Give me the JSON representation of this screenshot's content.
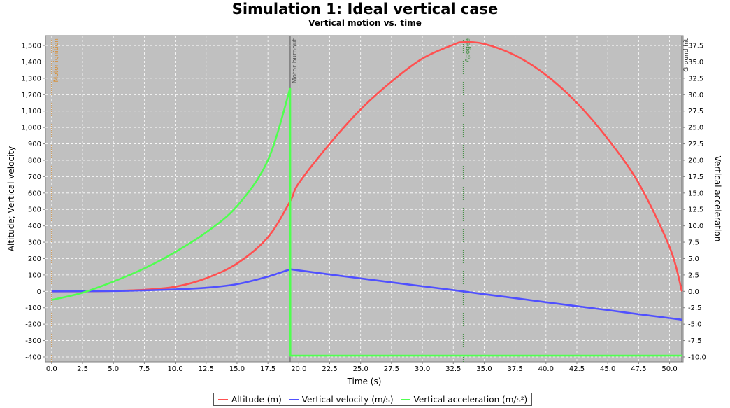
{
  "chart_data": {
    "type": "line",
    "title": "Simulation 1: Ideal vertical case",
    "subtitle": "Vertical motion vs. time",
    "xlabel": "Time (s)",
    "ylabel_left": "Altitude; Vertical velocity",
    "ylabel_right": "Vertical acceleration",
    "xlim": [
      -0.5,
      51.1
    ],
    "ylim_left": [
      -430,
      1560
    ],
    "ylim_right": [
      -10.75,
      39.0
    ],
    "x_ticks": [
      "0.0",
      "2.5",
      "5.0",
      "7.5",
      "10.0",
      "12.5",
      "15.0",
      "17.5",
      "20.0",
      "22.5",
      "25.0",
      "27.5",
      "30.0",
      "32.5",
      "35.0",
      "37.5",
      "40.0",
      "42.5",
      "45.0",
      "47.5",
      "50.0"
    ],
    "y_left_ticks": [
      "-400",
      "-300",
      "-200",
      "-100",
      "0",
      "100",
      "200",
      "300",
      "400",
      "500",
      "600",
      "700",
      "800",
      "900",
      "1,000",
      "1,100",
      "1,200",
      "1,300",
      "1,400",
      "1,500"
    ],
    "y_right_ticks": [
      "-10.0",
      "-7.5",
      "-5.0",
      "-2.5",
      "0.0",
      "2.5",
      "5.0",
      "7.5",
      "10.0",
      "12.5",
      "15.0",
      "17.5",
      "20.0",
      "22.5",
      "25.0",
      "27.5",
      "30.0",
      "32.5",
      "35.0",
      "37.5"
    ],
    "grid": true,
    "legend_position": "bottom",
    "series": [
      {
        "name": "Altitude (m)",
        "axis": "left",
        "color": "#ff5050",
        "points": [
          [
            0,
            0
          ],
          [
            2.5,
            0
          ],
          [
            5,
            3
          ],
          [
            7.5,
            10
          ],
          [
            10,
            28
          ],
          [
            12.5,
            80
          ],
          [
            15,
            170
          ],
          [
            17.5,
            330
          ],
          [
            19.3,
            550
          ],
          [
            20,
            660
          ],
          [
            22.5,
            900
          ],
          [
            25,
            1110
          ],
          [
            27.5,
            1280
          ],
          [
            30,
            1420
          ],
          [
            32.5,
            1505
          ],
          [
            33.3,
            1520
          ],
          [
            35,
            1510
          ],
          [
            37.5,
            1440
          ],
          [
            40,
            1320
          ],
          [
            42.5,
            1150
          ],
          [
            45,
            930
          ],
          [
            47.5,
            660
          ],
          [
            50,
            270
          ],
          [
            51,
            0
          ]
        ]
      },
      {
        "name": "Vertical velocity (m/s)",
        "axis": "left",
        "color": "#5050ff",
        "points": [
          [
            0,
            0
          ],
          [
            5,
            2
          ],
          [
            7.5,
            6
          ],
          [
            10,
            12
          ],
          [
            12.5,
            22
          ],
          [
            15,
            44
          ],
          [
            17.5,
            90
          ],
          [
            19.3,
            135
          ],
          [
            22.5,
            103
          ],
          [
            25,
            79
          ],
          [
            27.5,
            55
          ],
          [
            30,
            31
          ],
          [
            33.3,
            0
          ],
          [
            35,
            -17
          ],
          [
            37.5,
            -41
          ],
          [
            40,
            -66
          ],
          [
            42.5,
            -90
          ],
          [
            45,
            -114
          ],
          [
            47.5,
            -139
          ],
          [
            50,
            -163
          ],
          [
            51,
            -173
          ]
        ]
      },
      {
        "name": "Vertical acceleration (m/s²)",
        "axis": "right",
        "color": "#50ff50",
        "points": [
          [
            0,
            -1.3
          ],
          [
            2.5,
            -0.2
          ],
          [
            5,
            1.5
          ],
          [
            7.5,
            3.5
          ],
          [
            10,
            6.0
          ],
          [
            12.5,
            9.0
          ],
          [
            15,
            13.0
          ],
          [
            17.5,
            20.0
          ],
          [
            19.3,
            31.0
          ],
          [
            19.32,
            -9.8
          ],
          [
            51,
            -9.8
          ]
        ]
      }
    ],
    "events": [
      {
        "label": "Motor ignition",
        "x": 0,
        "color": "#d88a2a",
        "style": "dotted"
      },
      {
        "label": "Motor burnout",
        "x": 19.3,
        "color": "#555555",
        "style": "solid"
      },
      {
        "label": "Apogee",
        "x": 33.3,
        "color": "#3a8a3a",
        "style": "dotted"
      },
      {
        "label": "Ground hit",
        "x": 51,
        "color": "#222222",
        "style": "solid"
      }
    ]
  }
}
